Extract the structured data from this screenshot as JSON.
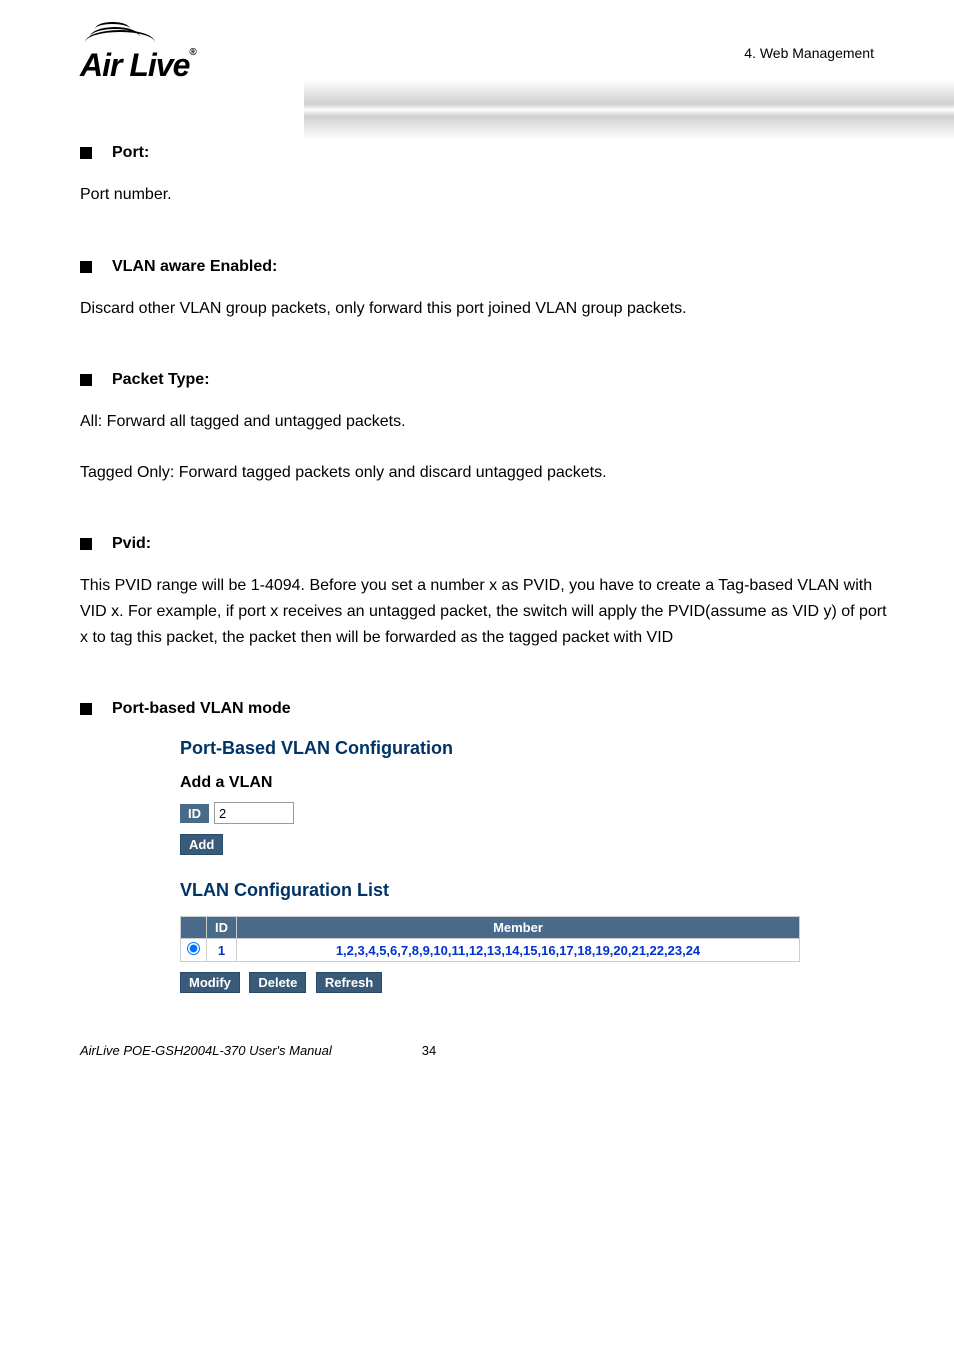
{
  "header": {
    "logo_text": "Air Live",
    "breadcrumb": "4. Web Management"
  },
  "sections": [
    {
      "title": "Port:",
      "paragraphs": [
        "Port number."
      ]
    },
    {
      "title": "VLAN aware Enabled:",
      "paragraphs": [
        "Discard other VLAN group packets, only forward this port joined VLAN group packets."
      ]
    },
    {
      "title": "Packet Type:",
      "paragraphs": [
        "All: Forward all tagged and untagged packets.",
        "Tagged Only: Forward tagged packets only and discard untagged packets."
      ]
    },
    {
      "title": "Pvid:",
      "paragraphs": [
        "This PVID range will be 1-4094. Before you set a number x as PVID, you have to create a Tag-based VLAN with VID x. For example, if port x receives an untagged packet, the switch will apply the PVID(assume as VID y) of port x to tag this packet, the packet then will be forwarded as the tagged packet with VID"
      ]
    },
    {
      "title": "Port-based VLAN mode",
      "paragraphs": []
    }
  ],
  "screenshot": {
    "main_title": "Port-Based VLAN Configuration",
    "add_section_title": "Add a VLAN",
    "id_label": "ID",
    "id_value": "2",
    "add_button": "Add",
    "list_title": "VLAN Configuration List",
    "table": {
      "columns": [
        "",
        "ID",
        "Member"
      ],
      "rows": [
        {
          "selected": true,
          "id": "1",
          "member": "1,2,3,4,5,6,7,8,9,10,11,12,13,14,15,16,17,18,19,20,21,22,23,24"
        }
      ]
    },
    "buttons": {
      "modify": "Modify",
      "delete": "Delete",
      "refresh": "Refresh"
    }
  },
  "footer": {
    "manual_text": "AirLive POE-GSH2004L-370 User's Manual",
    "page_number": "34"
  },
  "colors": {
    "heading_blue": "#003366",
    "button_blue": "#3a5a7a",
    "header_cell_blue": "#4a6a8a",
    "link_blue": "#0033cc"
  }
}
